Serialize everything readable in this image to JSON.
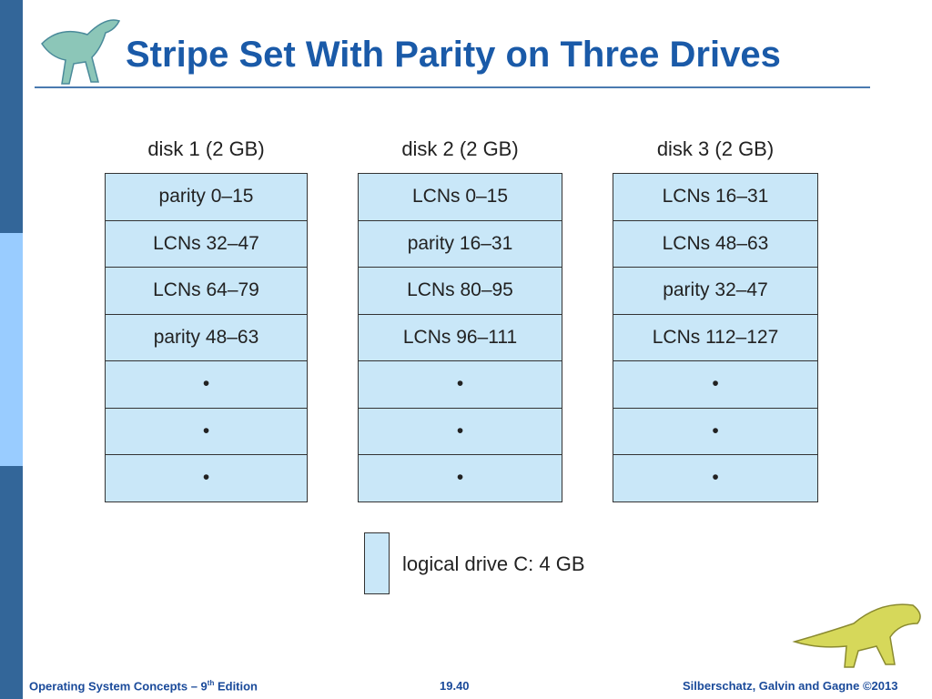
{
  "header": {
    "title": "Stripe Set With Parity on Three Drives"
  },
  "disks": [
    {
      "label": "disk 1 (2 GB)",
      "cells": [
        "parity 0–15",
        "LCNs 32–47",
        "LCNs 64–79",
        "parity 48–63",
        "•",
        "•",
        "•"
      ]
    },
    {
      "label": "disk 2 (2 GB)",
      "cells": [
        "LCNs 0–15",
        "parity 16–31",
        "LCNs 80–95",
        "LCNs 96–111",
        "•",
        "•",
        "•"
      ]
    },
    {
      "label": "disk 3 (2 GB)",
      "cells": [
        "LCNs 16–31",
        "LCNs 48–63",
        "parity 32–47",
        "LCNs 112–127",
        "•",
        "•",
        "•"
      ]
    }
  ],
  "legend": {
    "label": "logical drive C: 4 GB"
  },
  "footer": {
    "left": [
      "Operating System Concepts – 9",
      "th",
      " Edition"
    ],
    "page": "19.40",
    "right": "Silberschatz, Galvin and Gagne ©2013"
  }
}
